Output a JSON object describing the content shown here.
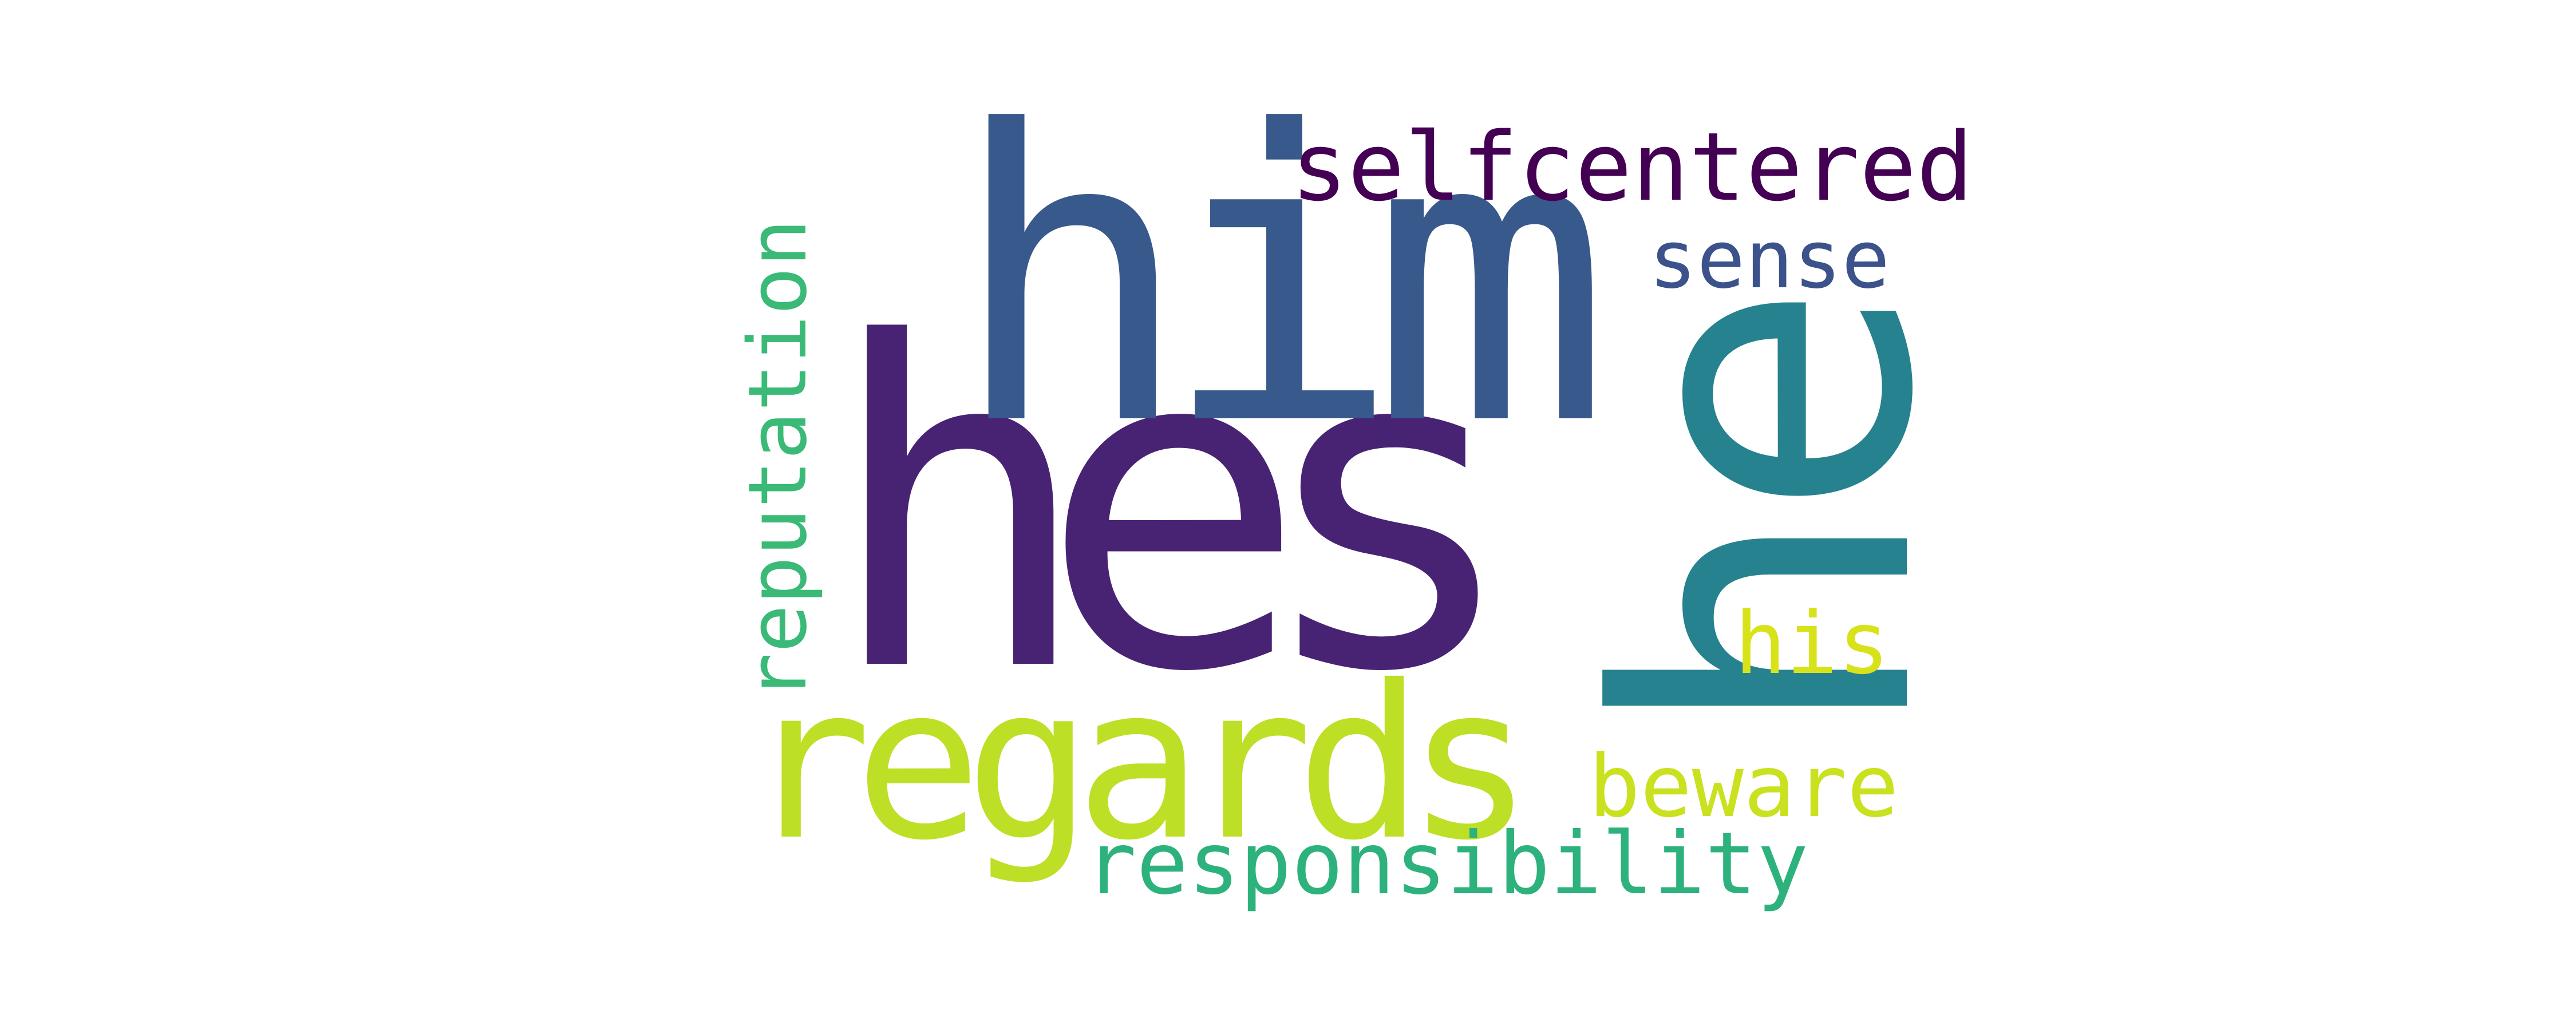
{
  "words": [
    {
      "id": "hes",
      "text": "hes",
      "color": "#482374"
    },
    {
      "id": "him",
      "text": "him",
      "color": "#38598c"
    },
    {
      "id": "he",
      "text": "he",
      "color": "#26828e"
    },
    {
      "id": "regards",
      "text": "regards",
      "color": "#bddf26"
    },
    {
      "id": "selfcentered",
      "text": "selfcentered",
      "color": "#440154"
    },
    {
      "id": "sense",
      "text": "sense",
      "color": "#3b528b"
    },
    {
      "id": "reputation",
      "text": "reputation",
      "color": "#3aba76"
    },
    {
      "id": "his",
      "text": "his",
      "color": "#d8e219"
    },
    {
      "id": "beware",
      "text": "beware",
      "color": "#cae11f"
    },
    {
      "id": "responsibility",
      "text": "responsibility",
      "color": "#2db27d"
    }
  ]
}
